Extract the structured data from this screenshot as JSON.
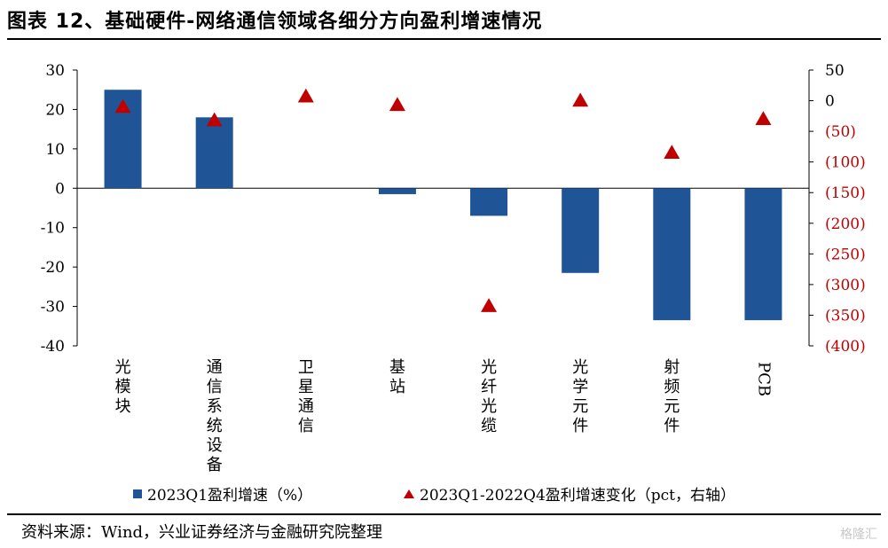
{
  "title": "图表 12、基础硬件-网络通信领域各细分方向盈利增速情况",
  "source": "资料来源：Wind，兴业证券经济与金融研究院整理",
  "watermark": "格隆汇",
  "colors": {
    "bar": "#1f5597",
    "marker": "#c00000",
    "negative_right_axis": "#c00000"
  },
  "chart_data": {
    "type": "bar",
    "categories": [
      "光模块",
      "通信系统设备",
      "卫星通信",
      "基站",
      "光纤光缆",
      "光学元件",
      "射频元件",
      "PCB"
    ],
    "series": [
      {
        "name": "2023Q1盈利增速（%）",
        "type": "bar",
        "axis": "left",
        "values": [
          25,
          18,
          null,
          -1.5,
          -7,
          -21.5,
          -33.5,
          -33.5
        ]
      },
      {
        "name": "2023Q1-2022Q4盈利增速变化（pct，右轴）",
        "type": "scatter",
        "marker": "triangle",
        "axis": "right",
        "values": [
          -10,
          -32,
          7,
          -7,
          -335,
          0,
          -85,
          -30
        ]
      }
    ],
    "ylim_left": [
      -40,
      30
    ],
    "yticks_left": [
      "30",
      "20",
      "10",
      "0",
      "-10",
      "-20",
      "-30",
      "-40"
    ],
    "ylim_right": [
      -400,
      50
    ],
    "yticks_right": [
      "50",
      "0",
      "(50)",
      "(100)",
      "(150)",
      "(200)",
      "(250)",
      "(300)",
      "(350)",
      "(400)"
    ],
    "grid": false,
    "legend_position": "bottom"
  }
}
